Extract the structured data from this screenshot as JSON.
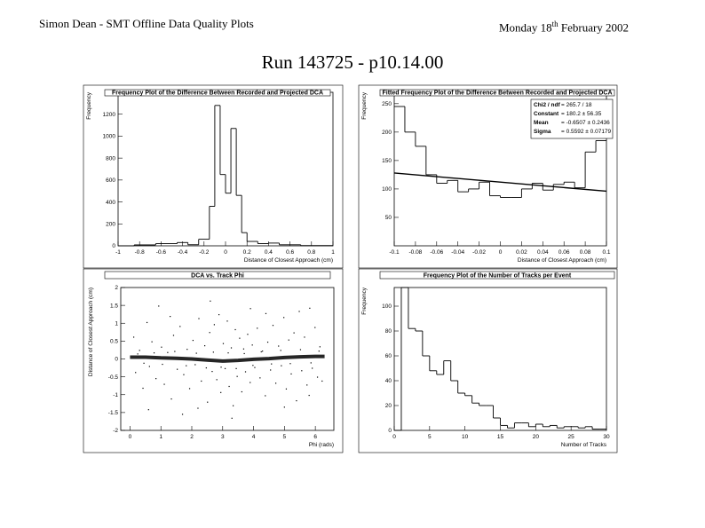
{
  "header": {
    "left": "Simon Dean - SMT Offline Data Quality Plots",
    "date_prefix": "Monday 18",
    "date_sup": "th",
    "date_suffix": " February 2002"
  },
  "run_title": "Run 143725 - p10.14.00",
  "chart_data": [
    {
      "id": "p1",
      "type": "line",
      "title": "Frequency Plot of the Difference Between Recorded and Projected DCA",
      "xlabel": "Distance of Closest Approach (cm)",
      "ylabel": "Frequency",
      "xlim": [
        -1,
        1
      ],
      "ylim": [
        0,
        1400
      ],
      "xticks": [
        -1,
        -0.8,
        -0.6,
        -0.4,
        -0.2,
        0,
        0.2,
        0.4,
        0.6,
        0.8,
        1
      ],
      "xtick_labels": [
        "-1",
        "-0.8",
        "-0.6",
        "-0.4",
        "-0.2",
        "0",
        "0.2",
        "0.4",
        "0.6",
        "0.8",
        "1"
      ],
      "yticks": [
        0,
        200,
        400,
        600,
        800,
        1000,
        1200
      ],
      "ytick_labels": [
        "0",
        "200",
        "400",
        "600",
        "800",
        "1000",
        "1200"
      ],
      "bins": [
        [
          -1.0,
          -0.85,
          0
        ],
        [
          -0.85,
          -0.65,
          8
        ],
        [
          -0.65,
          -0.45,
          20
        ],
        [
          -0.45,
          -0.35,
          30
        ],
        [
          -0.35,
          -0.25,
          10
        ],
        [
          -0.25,
          -0.15,
          60
        ],
        [
          -0.15,
          -0.1,
          360
        ],
        [
          -0.1,
          -0.05,
          1280
        ],
        [
          -0.05,
          0.0,
          650
        ],
        [
          0.0,
          0.05,
          480
        ],
        [
          0.05,
          0.1,
          1070
        ],
        [
          0.1,
          0.15,
          460
        ],
        [
          0.15,
          0.2,
          120
        ],
        [
          0.2,
          0.3,
          40
        ],
        [
          0.3,
          0.4,
          20
        ],
        [
          0.4,
          0.5,
          25
        ],
        [
          0.5,
          0.7,
          10
        ],
        [
          0.7,
          1.0,
          2
        ]
      ]
    },
    {
      "id": "p2",
      "type": "line",
      "title": "Fitted Frequency Plot of the Difference Between Recorded and Projected DCA",
      "xlabel": "Distance of Closest Approach (cm)",
      "ylabel": "Frequency",
      "xlim": [
        -0.1,
        0.1
      ],
      "ylim": [
        0,
        270
      ],
      "xticks": [
        -0.1,
        -0.08,
        -0.06,
        -0.04,
        -0.02,
        0,
        0.02,
        0.04,
        0.06,
        0.08,
        0.1
      ],
      "xtick_labels": [
        "-0.1",
        "-0.08",
        "-0.06",
        "-0.04",
        "-0.02",
        "0",
        "0.02",
        "0.04",
        "0.06",
        "0.08",
        "0.1"
      ],
      "yticks": [
        50,
        100,
        150,
        200,
        250
      ],
      "ytick_labels": [
        "50",
        "100",
        "150",
        "200",
        "250"
      ],
      "bins": [
        [
          -0.1,
          -0.09,
          245
        ],
        [
          -0.09,
          -0.08,
          200
        ],
        [
          -0.08,
          -0.07,
          175
        ],
        [
          -0.07,
          -0.06,
          125
        ],
        [
          -0.06,
          -0.05,
          110
        ],
        [
          -0.05,
          -0.04,
          115
        ],
        [
          -0.04,
          -0.03,
          95
        ],
        [
          -0.03,
          -0.02,
          100
        ],
        [
          -0.02,
          -0.01,
          112
        ],
        [
          -0.01,
          0.0,
          88
        ],
        [
          0.0,
          0.01,
          85
        ],
        [
          0.01,
          0.02,
          85
        ],
        [
          0.02,
          0.03,
          100
        ],
        [
          0.03,
          0.04,
          110
        ],
        [
          0.04,
          0.05,
          98
        ],
        [
          0.05,
          0.06,
          108
        ],
        [
          0.06,
          0.07,
          112
        ],
        [
          0.07,
          0.08,
          102
        ],
        [
          0.08,
          0.09,
          165
        ],
        [
          0.09,
          0.1,
          185
        ]
      ],
      "fit": {
        "x": [
          -0.1,
          0.1
        ],
        "y": [
          128,
          96
        ]
      },
      "stats": [
        {
          "label": "Chi2 / ndf",
          "value": "= 265.7 / 18"
        },
        {
          "label": "Constant",
          "value": "= 180.2 ± 56.35"
        },
        {
          "label": "Mean",
          "value": "= -0.6507 ± 0.2436"
        },
        {
          "label": "Sigma",
          "value": "= 0.5592 ± 0.07179"
        }
      ]
    },
    {
      "id": "p3",
      "type": "scatter",
      "title": "DCA vs. Track Phi",
      "xlabel": "Phi (rads)",
      "ylabel": "Distance of Closest Approach (cm)",
      "xlim": [
        -0.3,
        6.6
      ],
      "ylim": [
        -2,
        2
      ],
      "xticks": [
        0,
        1,
        2,
        3,
        4,
        5,
        6
      ],
      "xtick_labels": [
        "0",
        "1",
        "2",
        "3",
        "4",
        "5",
        "6"
      ],
      "yticks": [
        -2,
        -1.5,
        -1,
        -0.5,
        0,
        0.5,
        1,
        1.5,
        2
      ],
      "ytick_labels": [
        "-2",
        "-1.5",
        "-1",
        "-0.5",
        "0",
        "0.5",
        "1",
        "1.5",
        "2"
      ],
      "band": {
        "x": [
          0,
          0.5,
          1,
          1.5,
          2,
          2.5,
          3,
          3.5,
          4,
          4.5,
          5,
          5.5,
          6,
          6.3
        ],
        "y": [
          0.05,
          0.05,
          0.03,
          0.02,
          0.0,
          -0.03,
          -0.06,
          -0.04,
          -0.01,
          0.01,
          0.04,
          0.06,
          0.07,
          0.07
        ]
      },
      "points": [
        [
          0.12,
          0.61
        ],
        [
          0.18,
          -0.38
        ],
        [
          0.31,
          0.24
        ],
        [
          0.42,
          -0.82
        ],
        [
          0.55,
          1.02
        ],
        [
          0.63,
          -0.21
        ],
        [
          0.71,
          0.48
        ],
        [
          0.84,
          -0.55
        ],
        [
          0.93,
          1.48
        ],
        [
          1.02,
          0.33
        ],
        [
          1.11,
          -0.71
        ],
        [
          1.22,
          0.18
        ],
        [
          1.34,
          -1.12
        ],
        [
          1.41,
          0.66
        ],
        [
          1.53,
          -0.29
        ],
        [
          1.62,
          0.91
        ],
        [
          1.74,
          -0.44
        ],
        [
          1.85,
          0.27
        ],
        [
          1.93,
          -0.83
        ],
        [
          2.04,
          0.52
        ],
        [
          2.11,
          -0.16
        ],
        [
          2.23,
          1.13
        ],
        [
          2.31,
          -0.62
        ],
        [
          2.42,
          0.37
        ],
        [
          2.51,
          -1.21
        ],
        [
          2.58,
          0.74
        ],
        [
          2.66,
          -0.35
        ],
        [
          2.73,
          0.96
        ],
        [
          2.81,
          -0.58
        ],
        [
          2.88,
          1.24
        ],
        [
          2.94,
          -0.94
        ],
        [
          3.02,
          0.43
        ],
        [
          3.08,
          -0.27
        ],
        [
          3.15,
          1.06
        ],
        [
          3.21,
          -0.77
        ],
        [
          3.28,
          0.31
        ],
        [
          3.34,
          -1.31
        ],
        [
          3.41,
          0.82
        ],
        [
          3.47,
          -0.49
        ],
        [
          3.55,
          0.58
        ],
        [
          3.62,
          -0.92
        ],
        [
          3.68,
          0.28
        ],
        [
          3.74,
          -0.36
        ],
        [
          3.81,
          0.69
        ],
        [
          3.89,
          -0.66
        ],
        [
          3.96,
          0.39
        ],
        [
          4.04,
          -0.24
        ],
        [
          4.12,
          0.86
        ],
        [
          4.21,
          -0.53
        ],
        [
          4.29,
          0.22
        ],
        [
          4.38,
          -1.03
        ],
        [
          4.46,
          0.47
        ],
        [
          4.55,
          -0.31
        ],
        [
          4.63,
          0.94
        ],
        [
          4.72,
          -0.68
        ],
        [
          4.81,
          0.36
        ],
        [
          4.9,
          -0.19
        ],
        [
          4.98,
          1.16
        ],
        [
          5.06,
          -0.84
        ],
        [
          5.14,
          0.53
        ],
        [
          5.22,
          -0.42
        ],
        [
          5.31,
          0.73
        ],
        [
          5.39,
          -1.17
        ],
        [
          5.48,
          1.33
        ],
        [
          5.56,
          -0.33
        ],
        [
          5.65,
          0.61
        ],
        [
          5.73,
          -0.73
        ],
        [
          5.82,
          1.42
        ],
        [
          5.9,
          -0.26
        ],
        [
          5.99,
          0.88
        ],
        [
          6.07,
          -0.51
        ],
        [
          6.15,
          0.34
        ],
        [
          6.22,
          -0.62
        ],
        [
          0.25,
          0.14
        ],
        [
          0.45,
          -0.12
        ],
        [
          0.78,
          0.17
        ],
        [
          1.05,
          -0.15
        ],
        [
          1.45,
          0.21
        ],
        [
          1.82,
          -0.19
        ],
        [
          2.15,
          0.16
        ],
        [
          2.47,
          -0.25
        ],
        [
          2.7,
          0.19
        ],
        [
          2.95,
          -0.23
        ],
        [
          3.18,
          0.17
        ],
        [
          3.44,
          -0.27
        ],
        [
          3.7,
          0.15
        ],
        [
          3.98,
          -0.18
        ],
        [
          4.25,
          0.2
        ],
        [
          4.58,
          -0.14
        ],
        [
          4.88,
          0.24
        ],
        [
          5.19,
          -0.13
        ],
        [
          5.52,
          0.26
        ],
        [
          5.86,
          -0.11
        ],
        [
          6.12,
          0.22
        ],
        [
          0.6,
          -1.42
        ],
        [
          1.7,
          -1.55
        ],
        [
          2.6,
          1.62
        ],
        [
          3.3,
          -1.66
        ],
        [
          4.4,
          1.27
        ],
        [
          5.0,
          -1.35
        ],
        [
          3.9,
          1.41
        ],
        [
          2.2,
          -1.38
        ],
        [
          1.3,
          1.19
        ],
        [
          5.8,
          -1.02
        ]
      ]
    },
    {
      "id": "p4",
      "type": "line",
      "title": "Frequency Plot of the Number of Tracks per Event",
      "xlabel": "Number of Tracks",
      "ylabel": "Frequency",
      "xlim": [
        0,
        30
      ],
      "ylim": [
        0,
        115
      ],
      "xticks": [
        0,
        5,
        10,
        15,
        20,
        25,
        30
      ],
      "xtick_labels": [
        "0",
        "5",
        "10",
        "15",
        "20",
        "25",
        "30"
      ],
      "yticks": [
        0,
        20,
        40,
        60,
        80,
        100
      ],
      "yticks_labels_note": "",
      "ytick_labels": [
        "0",
        "20",
        "40",
        "60",
        "80",
        "100"
      ],
      "bins": [
        [
          0,
          1,
          0
        ],
        [
          1,
          2,
          115
        ],
        [
          2,
          3,
          82
        ],
        [
          3,
          4,
          80
        ],
        [
          4,
          5,
          60
        ],
        [
          5,
          6,
          48
        ],
        [
          6,
          7,
          45
        ],
        [
          7,
          8,
          56
        ],
        [
          8,
          9,
          40
        ],
        [
          9,
          10,
          30
        ],
        [
          10,
          11,
          28
        ],
        [
          11,
          12,
          22
        ],
        [
          12,
          13,
          20
        ],
        [
          13,
          14,
          20
        ],
        [
          14,
          15,
          10
        ],
        [
          15,
          16,
          4
        ],
        [
          16,
          17,
          2
        ],
        [
          17,
          18,
          6
        ],
        [
          18,
          19,
          6
        ],
        [
          19,
          20,
          3
        ],
        [
          20,
          21,
          5
        ],
        [
          21,
          22,
          3
        ],
        [
          22,
          23,
          4
        ],
        [
          23,
          24,
          2
        ],
        [
          24,
          25,
          3
        ],
        [
          25,
          26,
          3
        ],
        [
          26,
          27,
          2
        ],
        [
          27,
          28,
          3
        ],
        [
          28,
          29,
          1
        ],
        [
          29,
          30,
          1
        ]
      ]
    }
  ]
}
